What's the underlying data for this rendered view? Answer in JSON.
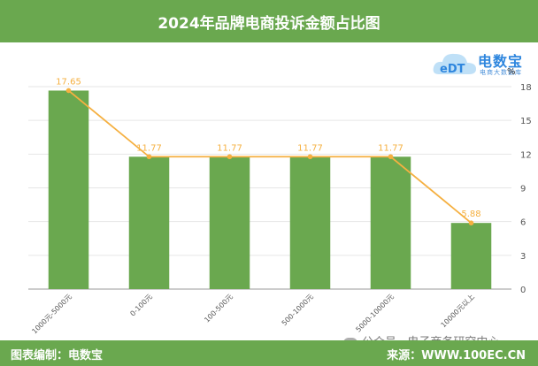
{
  "header": {
    "title": "2024年品牌电商投诉金额占比图"
  },
  "logo": {
    "name": "电数宝",
    "sub": "电商大数据库",
    "mark": "eDT"
  },
  "unit_label": "%",
  "footer": {
    "left": "图表编制：电数宝",
    "right": "来源：WWW.100EC.CN"
  },
  "watermark": {
    "text": "公众号 · 电子商务研究中心"
  },
  "colors": {
    "bar": "#6aa84f",
    "line": "#f5b041",
    "header": "#6aa84f",
    "axis_text": "#555555"
  },
  "chart_data": {
    "type": "bar",
    "title": "2024年品牌电商投诉金额占比图",
    "categories": [
      "1000元-5000元",
      "0-100元",
      "100-500元",
      "500-1000元",
      "5000-10000元",
      "10000元以上"
    ],
    "series": [
      {
        "type": "bar",
        "values": [
          17.65,
          11.77,
          11.77,
          11.77,
          11.77,
          5.88
        ]
      },
      {
        "type": "line",
        "values": [
          17.65,
          11.77,
          11.77,
          11.77,
          11.77,
          5.88
        ]
      }
    ],
    "data_labels": [
      "17.65",
      "11.77",
      "11.77",
      "11.77",
      "11.77",
      "5.88"
    ],
    "ylabel": "%",
    "ylim": [
      0,
      18
    ],
    "yticks": [
      0,
      3,
      6,
      9,
      12,
      15,
      18
    ],
    "y_axis_position": "right",
    "grid": true,
    "legend": "none"
  }
}
